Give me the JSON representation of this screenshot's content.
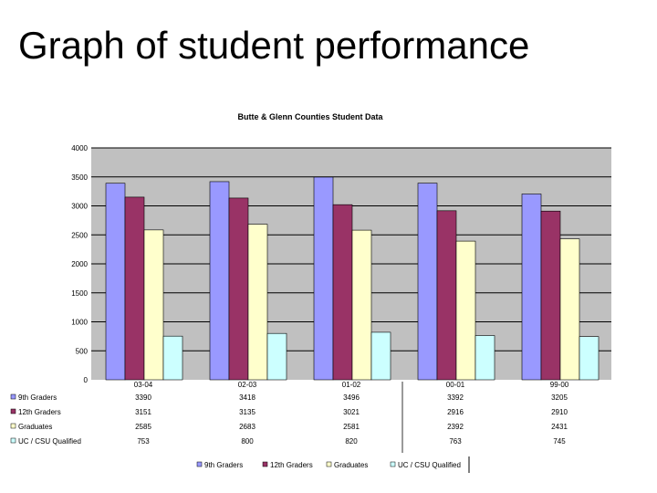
{
  "slide": {
    "title": "Graph of student performance"
  },
  "chart_data": {
    "type": "bar",
    "title": "Butte & Glenn Counties Student Data",
    "categories": [
      "03-04",
      "02-03",
      "01-02",
      "00-01",
      "99-00"
    ],
    "ylim": [
      0,
      4000
    ],
    "yticks": [
      "0",
      "500",
      "1000",
      "1500",
      "2000",
      "2500",
      "3000",
      "3500",
      "4000"
    ],
    "grid": true,
    "legend_position": "bottom",
    "series": [
      {
        "name": "9th Graders",
        "color": "#9999ff",
        "values": [
          3390,
          3418,
          3496,
          3392,
          3205
        ]
      },
      {
        "name": "12th Graders",
        "color": "#993366",
        "values": [
          3151,
          3135,
          3021,
          2916,
          2910
        ]
      },
      {
        "name": "Graduates",
        "color": "#ffffcc",
        "values": [
          2585,
          2683,
          2581,
          2392,
          2431
        ]
      },
      {
        "name": "UC / CSU Qualified",
        "color": "#ccffff",
        "values": [
          753,
          800,
          820,
          763,
          745
        ]
      }
    ]
  }
}
